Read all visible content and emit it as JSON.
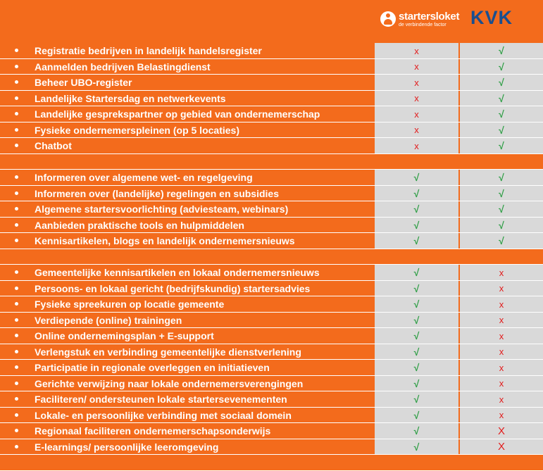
{
  "logos": {
    "starters_name": "startersloket",
    "starters_tagline": "de verbindende factor",
    "kvk": "KVK"
  },
  "colors": {
    "orange": "#f36b1c",
    "grey_cell": "#d9d9d9",
    "check": "#2e9e45",
    "cross": "#e21b1b",
    "kvk_blue": "#1a4f8f"
  },
  "rows": [
    {
      "type": "data",
      "label": "Registratie bedrijven in landelijk handelsregister",
      "startersloket": "x",
      "kvk": "√"
    },
    {
      "type": "data",
      "label": "Aanmelden bedrijven Belastingdienst",
      "startersloket": "x",
      "kvk": "√"
    },
    {
      "type": "data",
      "label": "Beheer UBO-register",
      "startersloket": "x",
      "kvk": "√"
    },
    {
      "type": "data",
      "label": "Landelijke Startersdag en netwerkevents",
      "startersloket": "x",
      "kvk": "√"
    },
    {
      "type": "data",
      "label": "Landelijke gesprekspartner op gebied van ondernemerschap",
      "startersloket": "x",
      "kvk": "√"
    },
    {
      "type": "data",
      "label": "Fysieke ondernemerspleinen (op 5 locaties)",
      "startersloket": "x",
      "kvk": "√"
    },
    {
      "type": "data",
      "label": "Chatbot",
      "startersloket": "x",
      "kvk": "√"
    },
    {
      "type": "sep"
    },
    {
      "type": "data",
      "label": "Informeren over algemene wet- en regelgeving",
      "startersloket": "√",
      "kvk": "√"
    },
    {
      "type": "data",
      "label": "Informeren over (landelijke) regelingen en subsidies",
      "startersloket": "√",
      "kvk": "√"
    },
    {
      "type": "data",
      "label": "Algemene startersvoorlichting (adviesteam, webinars)",
      "startersloket": "√",
      "kvk": "√"
    },
    {
      "type": "data",
      "label": "Aanbieden praktische tools en hulpmiddelen",
      "startersloket": "√",
      "kvk": "√"
    },
    {
      "type": "data",
      "label": "Kennisartikelen, blogs en landelijk ondernemersnieuws",
      "startersloket": "√",
      "kvk": "√"
    },
    {
      "type": "sep"
    },
    {
      "type": "data",
      "label": "Gemeentelijke kennisartikelen en lokaal ondernemersnieuws",
      "startersloket": "√",
      "kvk": "x"
    },
    {
      "type": "data",
      "label": "Persoons- en lokaal gericht (bedrijfskundig) startersadvies",
      "startersloket": "√",
      "kvk": "x"
    },
    {
      "type": "data",
      "label": "Fysieke spreekuren op locatie gemeente",
      "startersloket": "√",
      "kvk": "x"
    },
    {
      "type": "data",
      "label": "Verdiepende (online) trainingen",
      "startersloket": "√",
      "kvk": "x"
    },
    {
      "type": "data",
      "label": "Online ondernemingsplan + E-support",
      "startersloket": "√",
      "kvk": "x"
    },
    {
      "type": "data",
      "label": "Verlengstuk en verbinding gemeentelijke dienstverlening",
      "startersloket": "√",
      "kvk": "x"
    },
    {
      "type": "data",
      "label": "Participatie in regionale overleggen en initiatieven",
      "startersloket": "√",
      "kvk": "x"
    },
    {
      "type": "data",
      "label": "Gerichte verwijzing naar lokale ondernemersverengingen",
      "startersloket": "√",
      "kvk": "x"
    },
    {
      "type": "data",
      "label": "Faciliteren/ ondersteunen lokale startersevenementen",
      "startersloket": "√",
      "kvk": "x"
    },
    {
      "type": "data",
      "label": "Lokale- en persoonlijke verbinding met sociaal domein",
      "startersloket": "√",
      "kvk": "x"
    },
    {
      "type": "data",
      "label": "Regionaal faciliteren ondernemerschapsonderwijs",
      "startersloket": "√",
      "kvk": "X"
    },
    {
      "type": "data",
      "label": "E-learnings/ persoonlijke leeromgeving",
      "startersloket": "√",
      "kvk": "X"
    },
    {
      "type": "sep"
    }
  ]
}
